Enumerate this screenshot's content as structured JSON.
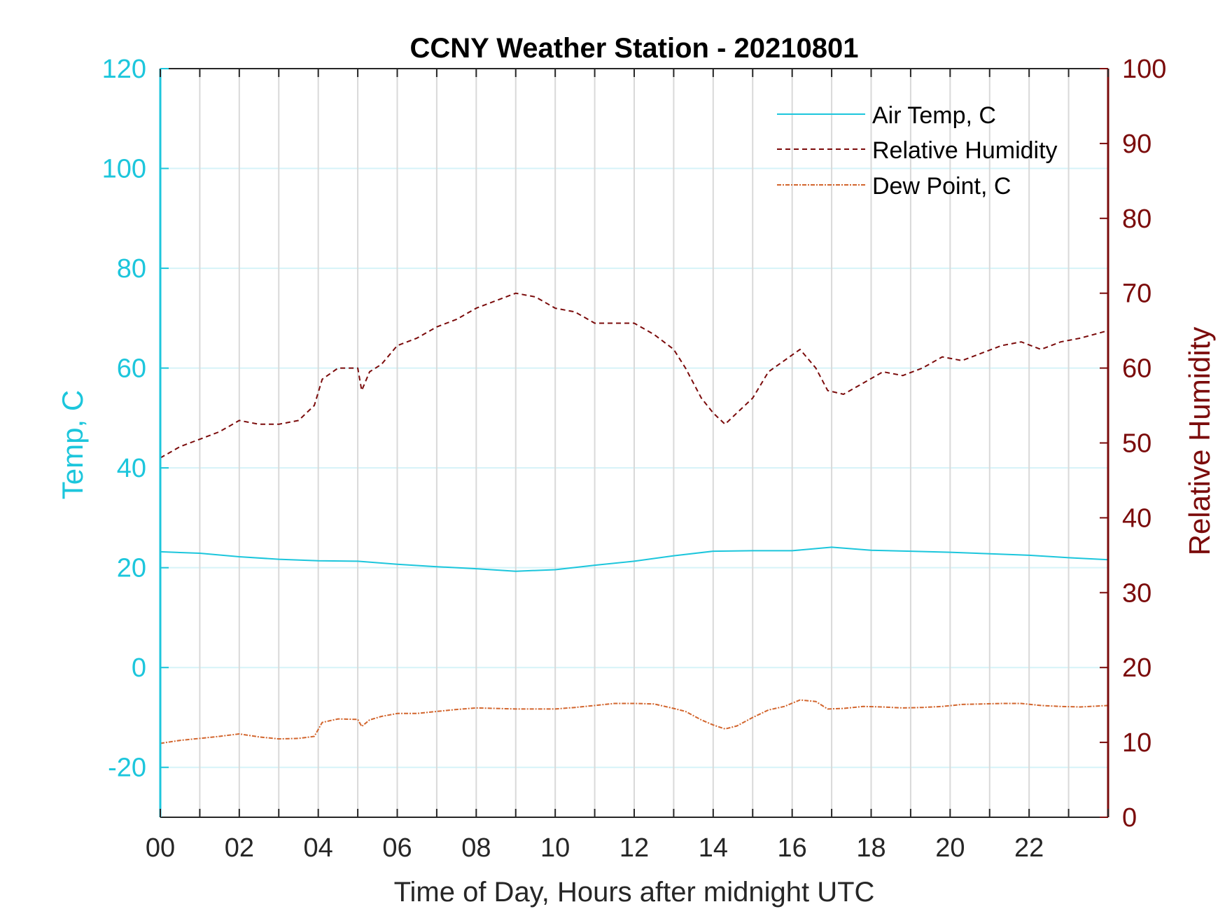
{
  "colors": {
    "air_temp": "#1cc6dc",
    "humidity": "#7b0b0b",
    "dew_point": "#d2652d",
    "left_axis": "#1cc6dc",
    "right_axis": "#7b0b0b",
    "grid_vertical": "#d9d9d9",
    "grid_horizontal": "#d6f3f8"
  },
  "chart_data": {
    "type": "line",
    "title": "CCNY Weather Station - 20210801",
    "xlabel": "Time of Day, Hours after midnight UTC",
    "ylabel_left": "Temp, C",
    "ylabel_right": "Relative Humidity",
    "xlim": [
      0,
      24
    ],
    "ylim_left": [
      -30,
      120
    ],
    "ylim_right": [
      0,
      100
    ],
    "x_ticks": [
      0,
      2,
      4,
      6,
      8,
      10,
      12,
      14,
      16,
      18,
      20,
      22
    ],
    "x_tick_labels": [
      "00",
      "02",
      "04",
      "06",
      "08",
      "10",
      "12",
      "14",
      "16",
      "18",
      "20",
      "22"
    ],
    "y_left_ticks": [
      -20,
      0,
      20,
      40,
      60,
      80,
      100,
      120
    ],
    "y_left_tick_labels": [
      "-20",
      "0",
      "20",
      "40",
      "60",
      "80",
      "100",
      "120"
    ],
    "y_right_ticks": [
      0,
      10,
      20,
      30,
      40,
      50,
      60,
      70,
      80,
      90,
      100
    ],
    "y_right_tick_labels": [
      "0",
      "10",
      "20",
      "30",
      "40",
      "50",
      "60",
      "70",
      "80",
      "90",
      "100"
    ],
    "grid": "on",
    "legend_position": "top-right",
    "series": [
      {
        "name": "Air Temp, C",
        "axis": "left",
        "style": "solid",
        "x": [
          0,
          1,
          2,
          3,
          4,
          5,
          6,
          7,
          8,
          9,
          10,
          11,
          12,
          13,
          14,
          15,
          16,
          17,
          18,
          19,
          20,
          21,
          22,
          23,
          24
        ],
        "y": [
          23.2,
          22.9,
          22.2,
          21.7,
          21.4,
          21.3,
          20.7,
          20.2,
          19.8,
          19.3,
          19.6,
          20.5,
          21.3,
          22.4,
          23.3,
          23.4,
          23.4,
          24.1,
          23.5,
          23.3,
          23.1,
          22.8,
          22.5,
          22.0,
          21.6
        ]
      },
      {
        "name": "Relative Humidity",
        "axis": "right",
        "style": "dashed",
        "x": [
          0,
          0.5,
          1,
          1.5,
          2,
          2.5,
          3,
          3.5,
          3.9,
          4.1,
          4.5,
          5,
          5.1,
          5.3,
          5.6,
          6,
          6.5,
          7,
          7.5,
          8,
          8.5,
          9,
          9.5,
          10,
          10.5,
          11,
          11.5,
          12,
          12.5,
          13,
          13.3,
          13.7,
          14,
          14.3,
          14.6,
          15,
          15.4,
          15.8,
          16.2,
          16.6,
          16.9,
          17.3,
          17.8,
          18.3,
          18.8,
          19.3,
          19.8,
          20.3,
          20.8,
          21.3,
          21.8,
          22.3,
          22.8,
          23.3,
          24
        ],
        "y": [
          48,
          49.5,
          50.5,
          51.5,
          53,
          52.5,
          52.5,
          53,
          55,
          58.5,
          60,
          60,
          57,
          59.5,
          60.5,
          63,
          64,
          65.5,
          66.5,
          68,
          69,
          70,
          69.5,
          68,
          67.5,
          66,
          66,
          66,
          64.5,
          62.5,
          60,
          56,
          54,
          52.5,
          54,
          56,
          59.5,
          61,
          62.5,
          60,
          57,
          56.5,
          58,
          59.5,
          59,
          60,
          61.5,
          61,
          62,
          63,
          63.5,
          62.5,
          63.5,
          64,
          65
        ]
      },
      {
        "name": "Dew Point, C",
        "axis": "left",
        "style": "dash-dot",
        "x": [
          0,
          0.5,
          1,
          1.5,
          2,
          2.5,
          3,
          3.5,
          3.9,
          4.1,
          4.5,
          5,
          5.1,
          5.3,
          5.6,
          6,
          6.5,
          7,
          7.5,
          8,
          8.5,
          9,
          9.5,
          10,
          10.5,
          11,
          11.5,
          12,
          12.5,
          13,
          13.3,
          13.7,
          14,
          14.3,
          14.6,
          15,
          15.4,
          15.8,
          16.2,
          16.6,
          16.9,
          17.3,
          17.8,
          18.3,
          18.8,
          19.3,
          19.8,
          20.3,
          20.8,
          21.3,
          21.8,
          22.3,
          22.8,
          23.3,
          24
        ],
        "y": [
          -15.2,
          -14.6,
          -14.2,
          -13.8,
          -13.3,
          -13.9,
          -14.3,
          -14.2,
          -13.8,
          -11,
          -10.3,
          -10.4,
          -11.8,
          -10.5,
          -9.8,
          -9.2,
          -9.2,
          -8.8,
          -8.4,
          -8.1,
          -8.2,
          -8.3,
          -8.3,
          -8.3,
          -8,
          -7.6,
          -7.2,
          -7.2,
          -7.3,
          -8.2,
          -8.8,
          -10.5,
          -11.5,
          -12.3,
          -11.7,
          -10,
          -8.5,
          -7.8,
          -6.5,
          -6.8,
          -8.3,
          -8.2,
          -7.8,
          -7.9,
          -8.1,
          -8,
          -7.8,
          -7.4,
          -7.3,
          -7.2,
          -7.2,
          -7.6,
          -7.8,
          -7.9,
          -7.6
        ]
      }
    ]
  }
}
